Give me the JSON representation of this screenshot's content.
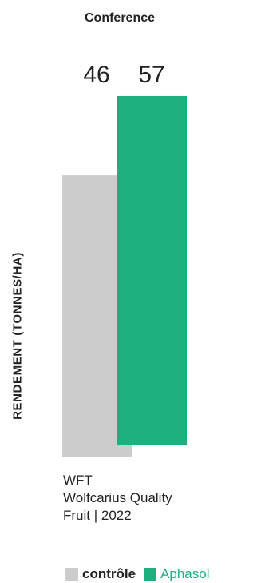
{
  "chart_data": {
    "type": "bar",
    "title": "Conference",
    "ylabel": "RENDEMENT (TONNES/HA)",
    "xlabel": "",
    "ylim": [
      0,
      70
    ],
    "categories": [
      "WFT Wolfcarius Quality Fruit | 2022"
    ],
    "series": [
      {
        "name": "contrôle",
        "values": [
          46
        ],
        "color": "#cccccc"
      },
      {
        "name": "Aphasol",
        "values": [
          57
        ],
        "color": "#1db07e"
      }
    ],
    "legend": "bottom",
    "grid": false
  },
  "source_lines": [
    "WFT",
    "Wolfcarius Quality",
    "Fruit | 2022"
  ]
}
